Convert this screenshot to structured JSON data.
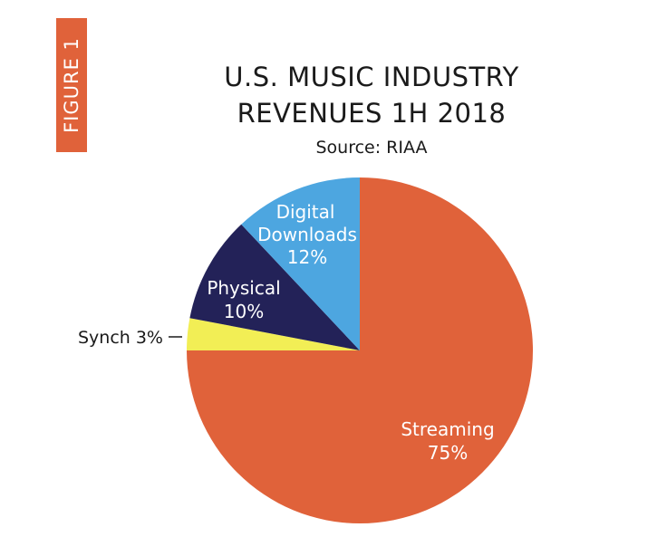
{
  "figure_label": "FIGURE 1",
  "colors": {
    "accent": "#E0623A",
    "streaming": "#E0623A",
    "digital_downloads": "#4DA6E0",
    "physical": "#232258",
    "synch": "#F2EE55"
  },
  "chart_data": {
    "type": "pie",
    "title": "U.S. MUSIC INDUSTRY REVENUES 1H 2018",
    "title_lines": [
      "U.S. MUSIC INDUSTRY",
      "REVENUES 1H 2018"
    ],
    "subtitle": "Source: RIAA",
    "slices": [
      {
        "label": "Streaming",
        "value": 75,
        "value_text": "75%",
        "color": "#E0623A"
      },
      {
        "label": "Synch",
        "value": 3,
        "value_text": "3%",
        "color": "#F2EE55"
      },
      {
        "label": "Physical",
        "value": 10,
        "value_text": "10%",
        "color": "#232258"
      },
      {
        "label": "Digital Downloads",
        "label_lines": [
          "Digital",
          "Downloads"
        ],
        "value": 12,
        "value_text": "12%",
        "color": "#4DA6E0"
      }
    ],
    "synch_label": "Synch 3%",
    "legend": "none"
  }
}
